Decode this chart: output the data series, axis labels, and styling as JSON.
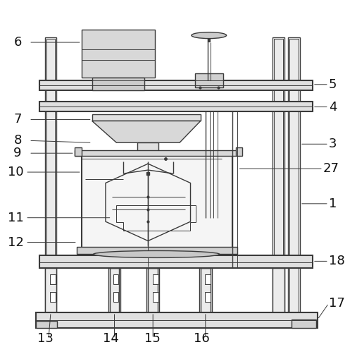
{
  "bg_color": "#ffffff",
  "lc": "#3a3a3a",
  "lw_thin": 0.7,
  "lw_med": 1.0,
  "lw_thick": 1.5,
  "fig_w": 5.07,
  "fig_h": 5.09,
  "dpi": 100
}
